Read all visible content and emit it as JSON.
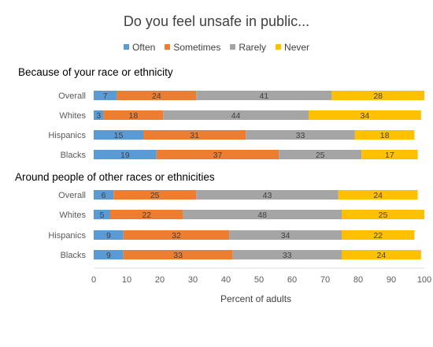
{
  "chart_data": {
    "type": "bar",
    "orientation": "horizontal",
    "stacked": true,
    "title": "Do you feel unsafe in public...",
    "xlabel": "Percent of adults",
    "xlim": [
      0,
      100
    ],
    "xticks": [
      "0",
      "10",
      "20",
      "30",
      "40",
      "50",
      "60",
      "70",
      "80",
      "90",
      "100"
    ],
    "grid": false,
    "legend_position": "top",
    "series": [
      {
        "name": "Often",
        "color": "#5b9bd5"
      },
      {
        "name": "Sometimes",
        "color": "#ed7d31"
      },
      {
        "name": "Rarely",
        "color": "#a5a5a5"
      },
      {
        "name": "Never",
        "color": "#ffc000"
      }
    ],
    "groups": [
      {
        "title": "Because of your race or ethnicity",
        "rows": [
          {
            "label": "Overall",
            "values": [
              7,
              24,
              41,
              28
            ]
          },
          {
            "label": "Whites",
            "values": [
              3,
              18,
              44,
              34
            ]
          },
          {
            "label": "Hispanics",
            "values": [
              15,
              31,
              33,
              18
            ]
          },
          {
            "label": "Blacks",
            "values": [
              19,
              37,
              25,
              17
            ]
          }
        ]
      },
      {
        "title": "Around people of other races or ethnicities",
        "rows": [
          {
            "label": "Overall",
            "values": [
              6,
              25,
              43,
              24
            ]
          },
          {
            "label": "Whites",
            "values": [
              5,
              22,
              48,
              25
            ]
          },
          {
            "label": "Hispanics",
            "values": [
              9,
              32,
              34,
              22
            ]
          },
          {
            "label": "Blacks",
            "values": [
              9,
              33,
              33,
              24
            ]
          }
        ]
      }
    ]
  }
}
